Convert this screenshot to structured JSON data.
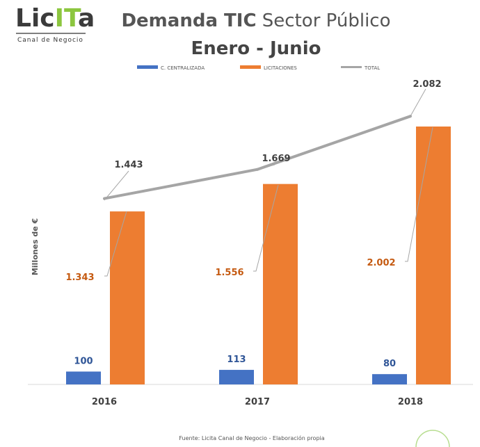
{
  "logo": {
    "text_lic": "Lic",
    "text_it": "IT",
    "text_a": "a",
    "tagline": "Canal de Negocio"
  },
  "chart_data": {
    "type": "bar",
    "title_bold": "Demanda TIC",
    "title_regular": "Sector Público",
    "subtitle": "Enero - Junio",
    "ylabel": "Millones de €",
    "xlabel": "",
    "categories": [
      "2016",
      "2017",
      "2018"
    ],
    "series": [
      {
        "name": "C. CENTRALIZADA",
        "kind": "bar",
        "color": "#4472c4",
        "values": [
          100,
          113,
          80
        ],
        "labels": [
          "100",
          "113",
          "80"
        ]
      },
      {
        "name": "LICITACIONES",
        "kind": "bar",
        "color": "#ed7d31",
        "values": [
          1343,
          1556,
          2002
        ],
        "labels": [
          "1.343",
          "1.556",
          "2.002"
        ]
      },
      {
        "name": "TOTAL",
        "kind": "line",
        "color": "#a5a5a5",
        "values": [
          1443,
          1669,
          2082
        ],
        "labels": [
          "1.443",
          "1.669",
          "2.082"
        ]
      }
    ],
    "ylim": [
      0,
      2082
    ],
    "grid": false,
    "legend": "top"
  },
  "footer": {
    "source": "Fuente: Licita Canal de Negocio - Elaboración propia"
  }
}
